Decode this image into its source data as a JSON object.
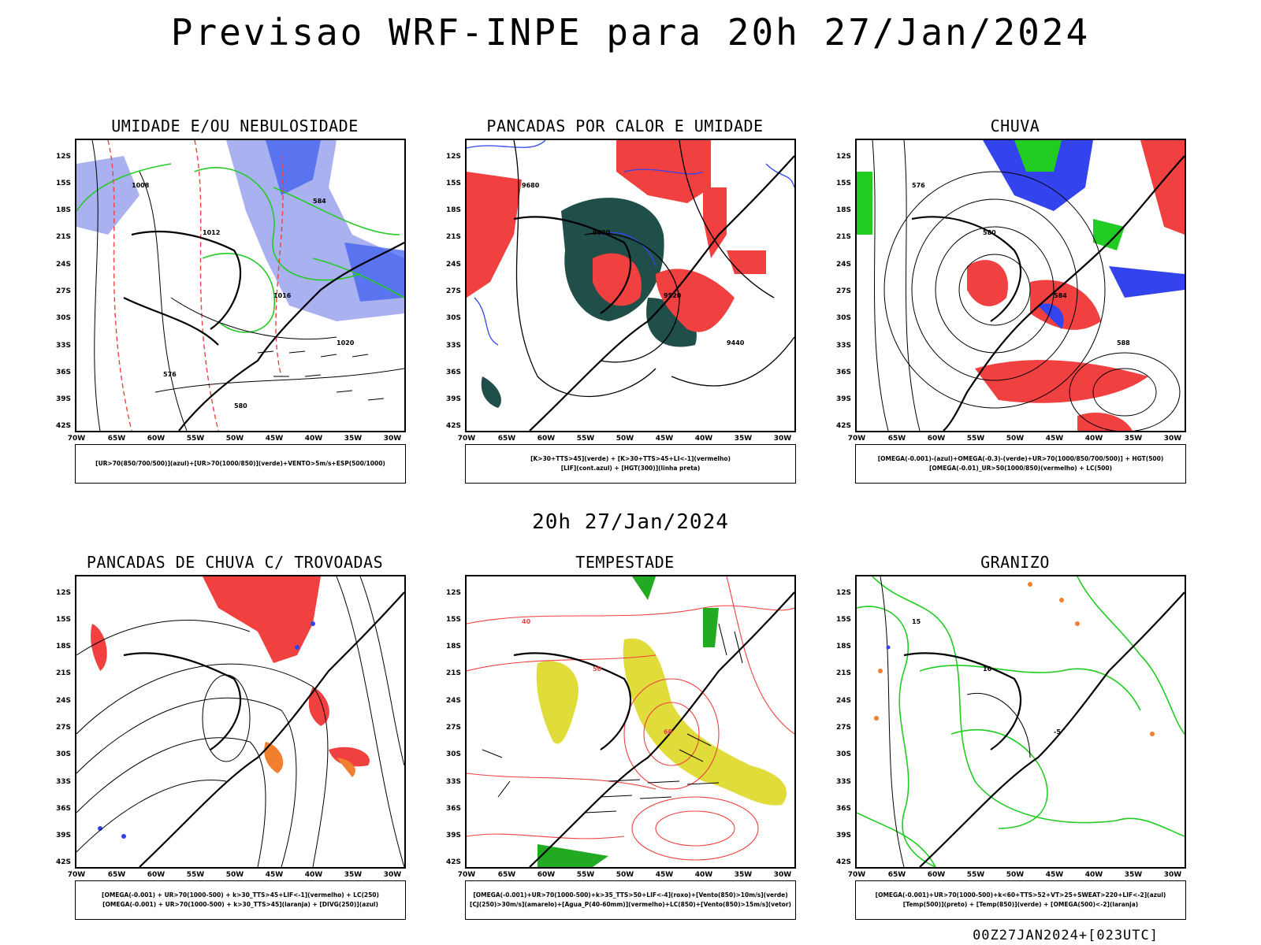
{
  "header": {
    "title": "Previsao WRF-INPE  para 20h 27/Jan/2024"
  },
  "subtitle": "20h 27/Jan/2024",
  "footer": "00Z27JAN2024+[023UTC]",
  "axes": {
    "lat_labels": [
      "12S",
      "15S",
      "18S",
      "21S",
      "24S",
      "27S",
      "30S",
      "33S",
      "36S",
      "39S",
      "42S"
    ],
    "lon_labels": [
      "70W",
      "65W",
      "60W",
      "55W",
      "50W",
      "45W",
      "40W",
      "35W",
      "30W"
    ]
  },
  "colors": {
    "red": "#f04040",
    "green": "#22cc22",
    "blue": "#3344ee",
    "lightblue": "#a0a8f0",
    "darkteal": "#1f4f48",
    "yellow": "#e0dc3a",
    "orange": "#f08030"
  },
  "panels": [
    {
      "title": "UMIDADE E/OU NEBULOSIDADE",
      "legend": [
        "[UR>70(850/700/500)](azul)+[UR>70(1000/850)](verde)+VENTO>5m/s+ESP(500/1000)"
      ],
      "contour_labels": [
        "1008",
        "1012",
        "1016",
        "1020",
        "576",
        "580",
        "584"
      ]
    },
    {
      "title": "PANCADAS POR CALOR E UMIDADE",
      "legend": [
        "[K>30+TTS>45](verde) + [K>30+TTS>45+LI<-1](vermelho)",
        "[LIF](cont.azul) + [HGT(300)](linha preta)"
      ],
      "contour_labels": [
        "9680",
        "9600",
        "9520",
        "9440"
      ]
    },
    {
      "title": "CHUVA",
      "legend": [
        "[OMEGA(-0.001)-(azul)+OMEGA(-0.3)-(verde)+UR>70(1000/850/700/500)] + HGT(500)",
        "[OMEGA(-0.01)_UR>50(1000/850)(vermelho) + LC(500)"
      ],
      "contour_labels": [
        "576",
        "580",
        "584",
        "588"
      ]
    },
    {
      "title": "PANCADAS DE CHUVA C/ TROVOADAS",
      "legend": [
        "[OMEGA(-0.001) + UR>70(1000-500) + k>30_TTS>45+LIF<-1](vermelho) + LC(250)",
        "[OMEGA(-0.001) + UR>70(1000-500) + k>30_TTS>45](laranja) + [DIVG(250)](azul)"
      ],
      "contour_labels": []
    },
    {
      "title": "TEMPESTADE",
      "legend": [
        "[OMEGA(-0.001)+UR>70(1000-500)+k>35_TTS>50+LIF<-4](roxo)+[Vento(850)>10m/s](verde)",
        "[CJ(250)>30m/s](amarelo)+[Agua_P(40-60mm)](vermelho)+LC(850)+[Vento(850)>15m/s](vetor)"
      ],
      "contour_labels": [
        "40",
        "50",
        "60"
      ]
    },
    {
      "title": "GRANIZO",
      "legend": [
        "[OMEGA(-0.001)+UR>70(1000-500)+k<60+TTS>52+VT>25+SWEAT>220+LIF<-2](azul)",
        "[Temp(500)](preto) + [Temp(850)](verde) + [OMEGA(500)<-2](laranja)"
      ],
      "contour_labels": [
        "15",
        "10",
        "-5"
      ]
    }
  ]
}
